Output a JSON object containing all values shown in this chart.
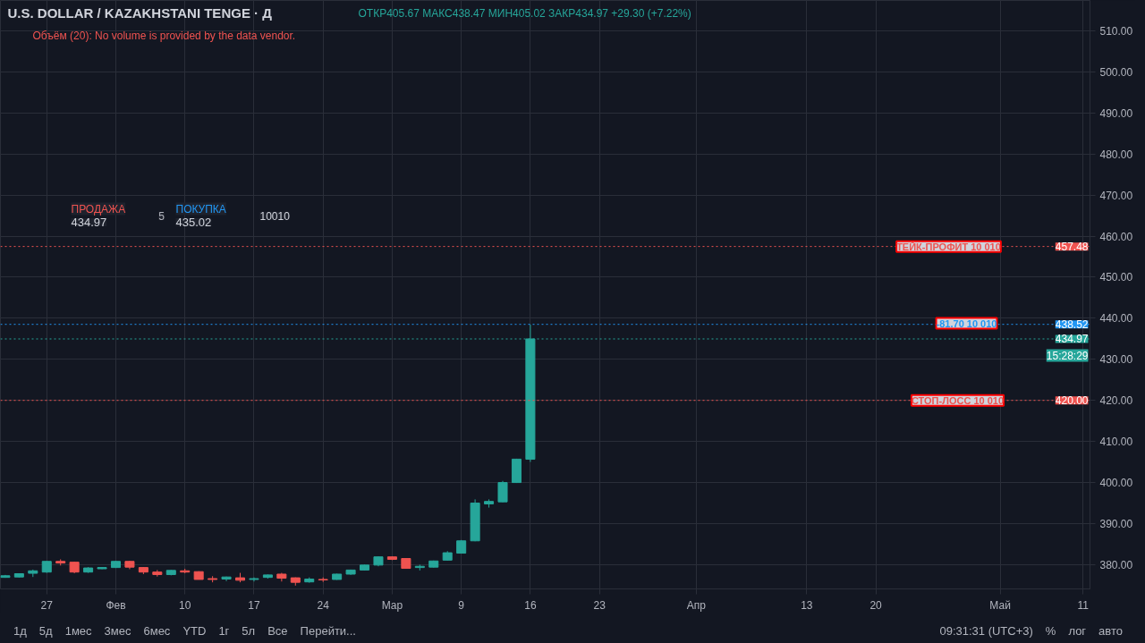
{
  "chart_data": {
    "type": "candlestick",
    "title": "U.S. DOLLAR / KAZAKHSTANI TENGE · Д",
    "categories": [
      null,
      null,
      null,
      "27",
      null,
      null,
      null,
      null,
      "Фев",
      null,
      null,
      null,
      null,
      "10",
      null,
      null,
      null,
      null,
      "17",
      null,
      null,
      null,
      null,
      "24",
      null,
      null,
      null,
      null,
      "Мар",
      null,
      null,
      null,
      null,
      "9",
      null,
      null,
      null,
      null,
      "16",
      null,
      null,
      null,
      null,
      "23",
      null,
      null,
      null,
      null,
      null,
      null,
      "Апр",
      null,
      null,
      null,
      null,
      null,
      null,
      null,
      "13",
      null,
      null,
      null,
      null,
      "20",
      null,
      null,
      null,
      null,
      null,
      null,
      null,
      null,
      "Май",
      null,
      null,
      null,
      null,
      null,
      "11"
    ],
    "ohlc": [
      [
        376.9,
        377.5,
        376.8,
        377.3
      ],
      [
        377.0,
        377.9,
        376.9,
        377.8
      ],
      [
        377.9,
        378.8,
        377.0,
        378.5
      ],
      [
        378.2,
        380.9,
        378.0,
        380.8
      ],
      [
        380.8,
        381.3,
        379.8,
        380.4
      ],
      [
        380.6,
        380.7,
        377.9,
        378.2
      ],
      [
        378.2,
        379.4,
        378.0,
        379.2
      ],
      [
        379.0,
        379.4,
        378.9,
        379.3
      ],
      [
        379.3,
        380.9,
        379.2,
        380.8
      ],
      [
        380.8,
        380.9,
        378.9,
        379.4
      ],
      [
        379.3,
        379.4,
        377.7,
        378.2
      ],
      [
        378.2,
        378.7,
        377.1,
        377.6
      ],
      [
        377.6,
        378.7,
        377.4,
        378.6
      ],
      [
        378.5,
        379.0,
        377.9,
        378.2
      ],
      [
        378.3,
        378.4,
        376.4,
        376.4
      ],
      [
        376.6,
        377.2,
        375.7,
        376.4
      ],
      [
        376.5,
        377.1,
        376.0,
        377.0
      ],
      [
        376.8,
        378.0,
        375.7,
        376.2
      ],
      [
        376.4,
        376.9,
        375.9,
        376.6
      ],
      [
        376.9,
        377.6,
        376.6,
        377.5
      ],
      [
        377.7,
        378.0,
        375.9,
        376.7
      ],
      [
        376.8,
        376.9,
        374.9,
        375.7
      ],
      [
        375.8,
        376.9,
        375.6,
        376.5
      ],
      [
        376.4,
        376.9,
        375.8,
        376.3
      ],
      [
        376.4,
        377.8,
        376.3,
        377.7
      ],
      [
        377.7,
        378.8,
        377.5,
        378.7
      ],
      [
        378.7,
        380.0,
        378.6,
        379.9
      ],
      [
        379.9,
        382.0,
        379.6,
        381.9
      ],
      [
        381.9,
        382.0,
        381.1,
        381.3
      ],
      [
        381.5,
        381.6,
        379.1,
        379.1
      ],
      [
        379.3,
        380.0,
        378.6,
        379.6
      ],
      [
        379.4,
        381.0,
        379.3,
        380.9
      ],
      [
        381.1,
        383.3,
        381.0,
        382.9
      ],
      [
        382.8,
        386.0,
        382.7,
        385.8
      ],
      [
        385.8,
        395.9,
        385.7,
        395.0
      ],
      [
        394.8,
        395.9,
        393.9,
        395.4
      ],
      [
        395.3,
        400.4,
        395.2,
        400.0
      ],
      [
        400.0,
        405.8,
        399.9,
        405.7
      ],
      [
        405.67,
        438.47,
        405.02,
        434.97
      ],
      null,
      null,
      null,
      null,
      null,
      null,
      null,
      null,
      null,
      null,
      null,
      null,
      null,
      null,
      null,
      null,
      null,
      null,
      null,
      null,
      null,
      null,
      null,
      null,
      null,
      null,
      null,
      null,
      null,
      null,
      null,
      null,
      null,
      null,
      null,
      null,
      null,
      null,
      null,
      null
    ],
    "colors": [
      "#26a69a",
      "#26a69a",
      "#26a69a",
      "#26a69a",
      "#ef5350",
      "#ef5350",
      "#26a69a",
      "#26a69a",
      "#26a69a",
      "#ef5350",
      "#ef5350",
      "#ef5350",
      "#26a69a",
      "#ef5350",
      "#ef5350",
      "#ef5350",
      "#26a69a",
      "#ef5350",
      "#26a69a",
      "#26a69a",
      "#ef5350",
      "#ef5350",
      "#26a69a",
      "#ef5350",
      "#26a69a",
      "#26a69a",
      "#26a69a",
      "#26a69a",
      "#ef5350",
      "#ef5350",
      "#26a69a",
      "#26a69a",
      "#26a69a",
      "#26a69a",
      "#26a69a",
      "#26a69a",
      "#26a69a",
      "#26a69a",
      "#26a69a",
      null,
      null,
      null,
      null,
      null,
      null,
      null,
      null,
      null,
      null,
      null,
      null,
      null,
      null,
      null,
      null,
      null,
      null,
      null,
      null,
      null,
      null,
      null,
      null,
      null,
      null,
      null,
      null,
      null,
      null,
      null,
      null,
      null,
      null,
      null,
      null,
      null,
      null,
      null,
      null
    ],
    "ylim": [
      374.1,
      517.4
    ],
    "yticks": [
      {
        "value": 380,
        "label": "380.00"
      },
      {
        "value": 390,
        "label": "390.00"
      },
      {
        "value": 400,
        "label": "400.00"
      },
      {
        "value": 410,
        "label": "410.00"
      },
      {
        "value": 420,
        "label": "420.00"
      },
      {
        "value": 430,
        "label": "430.00"
      },
      {
        "value": 440,
        "label": "440.00"
      },
      {
        "value": 450,
        "label": "450.00"
      },
      {
        "value": 460,
        "label": "460.00"
      },
      {
        "value": 470,
        "label": "470.00"
      },
      {
        "value": 480,
        "label": "480.00"
      },
      {
        "value": 490,
        "label": "490.00"
      },
      {
        "value": 500,
        "label": "500.00"
      },
      {
        "value": 510,
        "label": "510.00"
      }
    ],
    "grid": true,
    "ref_lines": [
      {
        "axis": "y",
        "value": 457.48,
        "label": "ТЕЙК-ПРОФИТ 10 010",
        "color": "#ef5350",
        "line_style": "dotted"
      },
      {
        "axis": "y",
        "value": 438.52,
        "label": null,
        "color": "#2196f3",
        "line_style": "dotted"
      },
      {
        "axis": "y",
        "value": 434.97,
        "label": null,
        "color": "#26a69a",
        "line_style": "dotted"
      },
      {
        "axis": "y",
        "value": 420.0,
        "label": "СТОП-ЛОСС 10 010",
        "color": "#ef5350",
        "line_style": "dotted"
      }
    ],
    "annotations": [
      "ОТКР405.67 МАКС438.47 МИН405.02 ЗАКР434.97 +29.30 (+7.22%)",
      "Объём (20): No volume is provided by the data vendor.",
      "ПРОДАЖА",
      "434.97",
      "5",
      "ПОКУПКА",
      "435.02",
      "10010",
      "15:28:29",
      "-81.70 10 010",
      "457.48",
      "438.52",
      "434.97",
      "420.00",
      "1д",
      "5д",
      "1мес",
      "3мес",
      "6мес",
      "YTD",
      "1г",
      "5л",
      "Все",
      "Перейти...",
      "09:31:31 (UTC+3)",
      "%",
      "лог",
      "авто"
    ]
  }
}
